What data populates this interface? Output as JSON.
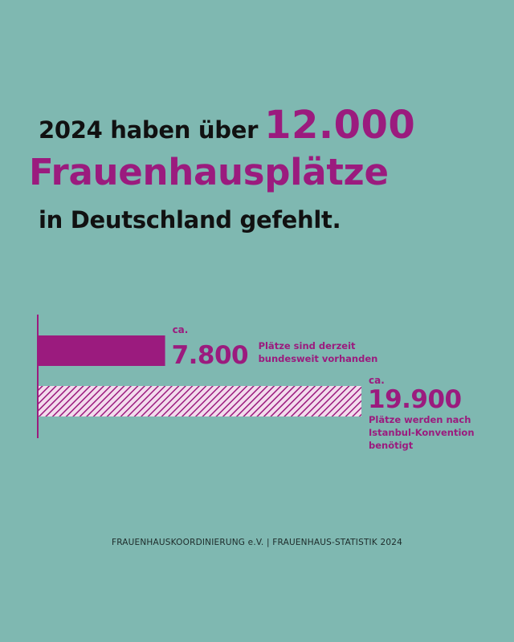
{
  "headline": {
    "line1_text": "2024 haben über",
    "line1_highlight": "12.000",
    "line2": "Frauenhausplätze",
    "line3": "in Deutschland gefehlt."
  },
  "chart_data": {
    "type": "bar",
    "orientation": "horizontal",
    "categories": [
      "Plätze sind derzeit bundesweit vorhanden",
      "Plätze werden nach Istanbul-Konvention benötigt"
    ],
    "values": [
      7800,
      19900
    ],
    "value_labels": [
      "7.800",
      "19.900"
    ],
    "prefix": "ca.",
    "label_lines": [
      [
        "Plätze sind derzeit",
        "bundesweit vorhanden"
      ],
      [
        "Plätze werden nach",
        "Istanbul-Konvention",
        "benötigt"
      ]
    ],
    "bar_styles": [
      "solid",
      "hatched"
    ],
    "colors": {
      "bar": "#9b1b7e",
      "hatch_bg": "#f3dced",
      "axis": "#9b1b7e",
      "text": "#9b1b7e"
    },
    "xlim": [
      0,
      19900
    ],
    "grid": false
  },
  "footer": "FRAUENHAUSKOORDINIERUNG e.V. | FRAUENHAUS-STATISTIK 2024"
}
